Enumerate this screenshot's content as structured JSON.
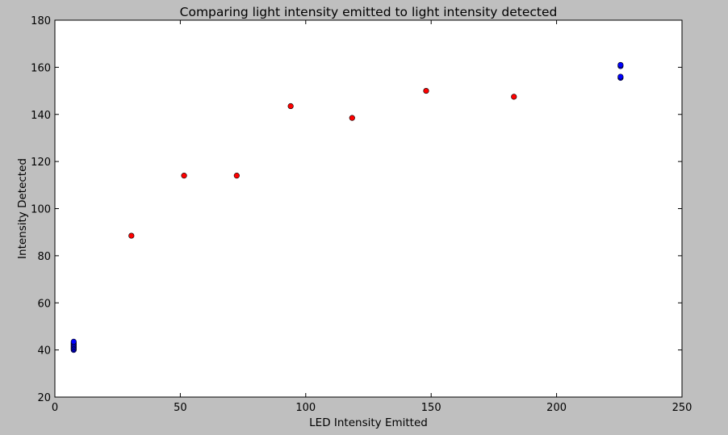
{
  "chart_data": {
    "type": "scatter",
    "title": "Comparing light intensity emitted to light intensity detected",
    "xlabel": "LED Intensity Emitted",
    "ylabel": "Intensity Detected",
    "xlim": [
      0,
      250
    ],
    "ylim": [
      20,
      180
    ],
    "xticks": [
      0,
      50,
      100,
      150,
      200,
      250
    ],
    "yticks": [
      20,
      40,
      60,
      80,
      100,
      120,
      140,
      160,
      180
    ],
    "grid": false,
    "series": [
      {
        "color": "#ff0000",
        "points": [
          {
            "x": 30.5,
            "y": 88.5
          },
          {
            "x": 51.5,
            "y": 114
          },
          {
            "x": 72.5,
            "y": 114
          },
          {
            "x": 94,
            "y": 143.5
          },
          {
            "x": 118.5,
            "y": 138.5
          },
          {
            "x": 148,
            "y": 150
          },
          {
            "x": 183,
            "y": 147.5
          }
        ]
      },
      {
        "color": "#0000ff",
        "points": [
          {
            "x": 7.5,
            "y": 40
          },
          {
            "x": 7.5,
            "y": 40.5
          },
          {
            "x": 7.5,
            "y": 41
          },
          {
            "x": 7.5,
            "y": 41.5
          },
          {
            "x": 7.5,
            "y": 42
          },
          {
            "x": 7.5,
            "y": 42.5
          },
          {
            "x": 7.5,
            "y": 43
          },
          {
            "x": 7.5,
            "y": 43.5
          },
          {
            "x": 225.5,
            "y": 155.5
          },
          {
            "x": 225.5,
            "y": 156
          },
          {
            "x": 225.5,
            "y": 160.5
          },
          {
            "x": 225.5,
            "y": 161
          }
        ]
      }
    ]
  }
}
